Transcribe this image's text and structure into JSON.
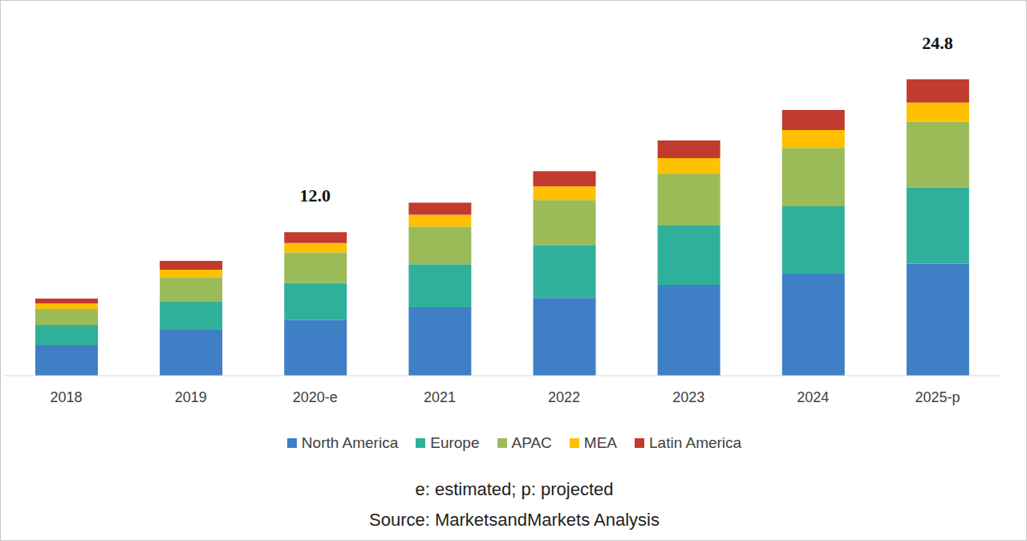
{
  "chart_data": {
    "type": "bar",
    "stacked": true,
    "tick_labels": "x",
    "grid": false,
    "categories": [
      "2018",
      "2019",
      "2020-e",
      "2021",
      "2022",
      "2023",
      "2024",
      "2025-p"
    ],
    "ylim": [
      0,
      28
    ],
    "series": [
      {
        "name": "North America",
        "color": "#3f7fc6",
        "values": [
          2.55,
          3.83,
          4.65,
          5.7,
          6.5,
          7.58,
          8.52,
          9.36
        ]
      },
      {
        "name": "Europe",
        "color": "#2fb09b",
        "values": [
          1.68,
          2.35,
          3.1,
          3.62,
          4.43,
          4.97,
          5.64,
          6.38
        ]
      },
      {
        "name": "APAC",
        "color": "#9bbb59",
        "values": [
          1.34,
          2.01,
          2.55,
          3.15,
          3.76,
          4.36,
          4.9,
          5.5
        ]
      },
      {
        "name": "MEA",
        "color": "#ffc000",
        "values": [
          0.47,
          0.67,
          0.8,
          1.0,
          1.14,
          1.28,
          1.48,
          1.61
        ]
      },
      {
        "name": "Latin America",
        "color": "#c23b2e",
        "values": [
          0.4,
          0.74,
          0.9,
          1.0,
          1.27,
          1.48,
          1.68,
          1.95
        ]
      }
    ],
    "annotations": [
      {
        "x": "2020-e",
        "y": 12.0,
        "text": "12.0"
      },
      {
        "x": "2025-p",
        "y": 24.8,
        "text": "24.8"
      }
    ],
    "footnotes": [
      "e: estimated; p: projected",
      "Source: MarketsandMarkets Analysis"
    ]
  }
}
